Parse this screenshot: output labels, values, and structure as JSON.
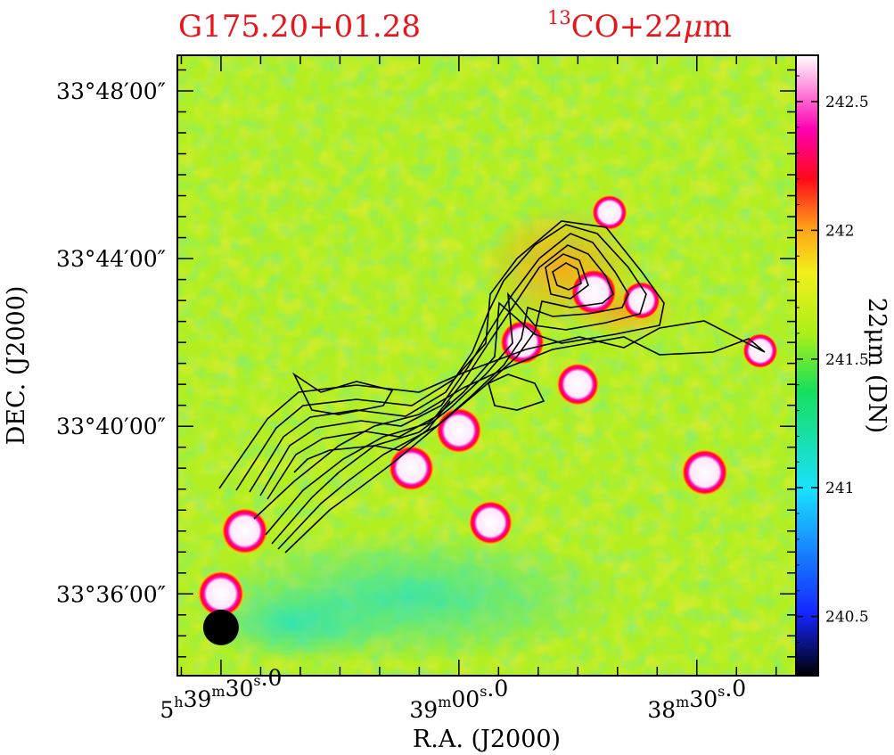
{
  "chart_data": {
    "type": "heatmap",
    "title_left": "G175.20+01.28",
    "title_right_sup": "13",
    "title_right": "CO+22",
    "title_right_mu": "μ",
    "title_right_unit": "m",
    "xlabel": "R.A. (J2000)",
    "ylabel": "DEC. (J2000)",
    "colorbar_label": "22μm (DN)",
    "x_ticks": [
      {
        "h": "5",
        "m": "39",
        "s": "30",
        "frac": ".0",
        "ra_s": 30
      },
      {
        "h": "",
        "m": "39",
        "s": "00",
        "frac": ".0",
        "ra_s": 0
      },
      {
        "h": "",
        "m": "38",
        "s": "30",
        "frac": ".0",
        "ra_s": -30
      }
    ],
    "y_ticks": [
      {
        "label": "33°48′00″",
        "dec_min": 48
      },
      {
        "label": "33°44′00″",
        "dec_min": 44
      },
      {
        "label": "33°40′00″",
        "dec_min": 40
      },
      {
        "label": "33°36′00″",
        "dec_min": 36
      }
    ],
    "colorbar_ticks": [
      "242.5",
      "242",
      "241.5",
      "241",
      "240.5"
    ],
    "colorbar_tick_values": [
      242.5,
      242.0,
      241.5,
      241.0,
      240.5
    ],
    "colorbar_range": [
      240.27,
      242.68
    ],
    "background_level": 241.55,
    "colors": {
      "title": "#e8151b",
      "colormap": [
        "#000000",
        "#1525ff",
        "#19e1ff",
        "#16e05a",
        "#a8f018",
        "#f2ef1a",
        "#ffa318",
        "#ff0a18",
        "#ff00b0",
        "#ffffff"
      ]
    },
    "point_sources": [
      {
        "ra_s": 27,
        "dec_min": 37.5,
        "level": 242.68
      },
      {
        "ra_s": 30,
        "dec_min": 36.0,
        "level": 242.68
      },
      {
        "ra_s": 6,
        "dec_min": 39.0,
        "level": 242.65
      },
      {
        "ra_s": 0,
        "dec_min": 39.9,
        "level": 242.66
      },
      {
        "ra_s": -4,
        "dec_min": 37.7,
        "level": 242.6
      },
      {
        "ra_s": -8,
        "dec_min": 42.0,
        "level": 242.62
      },
      {
        "ra_s": -17,
        "dec_min": 43.2,
        "level": 242.68
      },
      {
        "ra_s": -15,
        "dec_min": 41.0,
        "level": 242.55
      },
      {
        "ra_s": -31,
        "dec_min": 38.9,
        "level": 242.68
      },
      {
        "ra_s": -23,
        "dec_min": 43.0,
        "level": 242.4
      },
      {
        "ra_s": -38,
        "dec_min": 41.8,
        "level": 242.3
      },
      {
        "ra_s": -19,
        "dec_min": 45.1,
        "level": 242.3
      }
    ],
    "beam": {
      "ra_s": 30,
      "dec_min": 35.2
    }
  }
}
